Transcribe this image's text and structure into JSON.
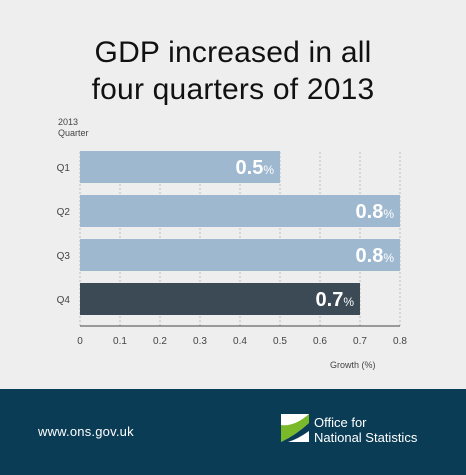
{
  "chart_data": {
    "type": "bar",
    "orientation": "horizontal",
    "title": "GDP increased in all\nfour quarters of 2013",
    "y_header": "2013\nQuarter",
    "xlabel": "Growth (%)",
    "categories": [
      "Q1",
      "Q2",
      "Q3",
      "Q4"
    ],
    "values": [
      0.5,
      0.8,
      0.8,
      0.7
    ],
    "value_labels": [
      "0.5",
      "0.8",
      "0.8",
      "0.7"
    ],
    "value_unit": "%",
    "xlim": [
      0,
      0.8
    ],
    "x_ticks": [
      "0",
      "0.1",
      "0.2",
      "0.3",
      "0.4",
      "0.5",
      "0.6",
      "0.7",
      "0.8"
    ],
    "grid": true,
    "colors": {
      "bar": "#9eb8d0",
      "bar_highlight": "#3b4a55",
      "highlight_category": "Q4",
      "grid": "#bfbfbf",
      "value_label": "#ffffff"
    }
  },
  "footer": {
    "url": "www.ons.gov.uk",
    "org_name": "Office for\nNational Statistics",
    "logo_icon": "ons-logo-icon",
    "background": "#0a3c55"
  }
}
